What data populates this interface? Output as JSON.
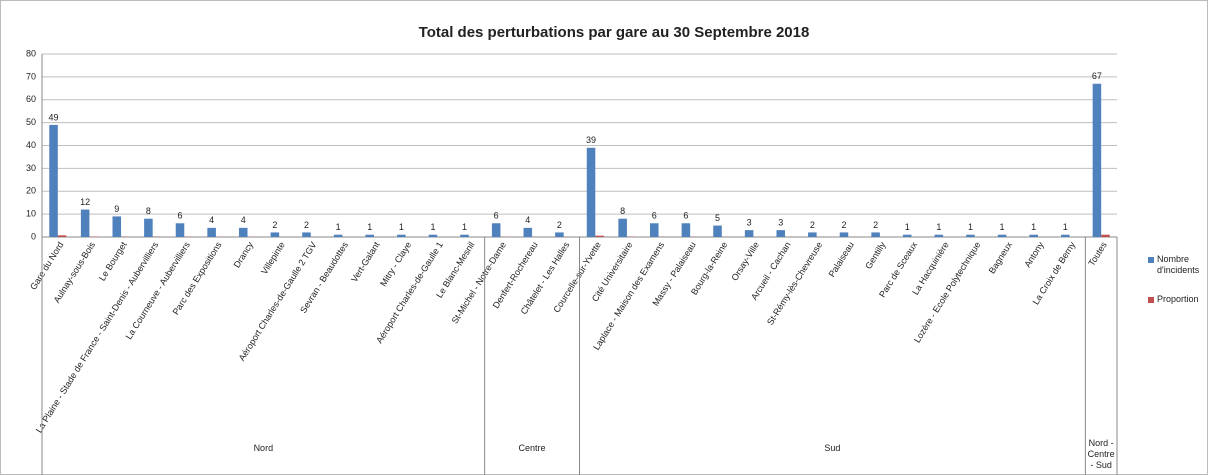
{
  "chart_data": {
    "type": "bar",
    "title": "Total des perturbations par gare au 30 Septembre 2018",
    "groups": [
      {
        "label": "Nord",
        "categories": [
          "Gare du Nord",
          "Aulnay-sous-Bois",
          "Le Bourget",
          "La Plaine - Stade de France - Saint-Denis - Aubervilliers",
          "La Courneuve - Aubervilliers",
          "Parc des Expositions",
          "Drancy",
          "Villepinte",
          "Aéroport Charles-de-Gaulle 2 TGV",
          "Sevran - Beaudottes",
          "Vert-Galant",
          "Mitry - Claye",
          "Aéroport Charles-de-Gaulle 1",
          "Le Blanc-Mesnil"
        ]
      },
      {
        "label": "Centre",
        "categories": [
          "St-Michel - Notre-Dame",
          "Denfert-Rochereau",
          "Châtelet - Les Halles"
        ]
      },
      {
        "label": "Sud",
        "categories": [
          "Courcelle-sur-Yvette",
          "Cité Universitaire",
          "Laplace - Maison des Examens",
          "Massy - Palaiseau",
          "Bourg-la-Reine",
          "Orsay-Ville",
          "Arcueil - Cachan",
          "St-Rémy-lès-Chevreuse",
          "Palaiseau",
          "Gentilly",
          "Parc de Sceaux",
          "La Hacquinière",
          "Lozère - Ecole Polytechnique",
          "Bagneux",
          "Antony",
          "La Croix de Berny"
        ]
      },
      {
        "label": "Nord - Centre - Sud",
        "categories": [
          "Toutes"
        ]
      }
    ],
    "series": [
      {
        "name": "Nombre d'incidents",
        "color": "#4f81bd",
        "values": [
          49,
          12,
          9,
          8,
          6,
          4,
          4,
          2,
          2,
          1,
          1,
          1,
          1,
          1,
          6,
          4,
          2,
          39,
          8,
          6,
          6,
          5,
          3,
          3,
          2,
          2,
          2,
          1,
          1,
          1,
          1,
          1,
          1,
          67
        ]
      },
      {
        "name": "Proportion",
        "color": "#c0504d",
        "values": [
          0.73,
          0.18,
          0.13,
          0.12,
          0.09,
          0.06,
          0.06,
          0.03,
          0.03,
          0.01,
          0.01,
          0.01,
          0.01,
          0.01,
          0.09,
          0.06,
          0.03,
          0.58,
          0.12,
          0.09,
          0.09,
          0.07,
          0.04,
          0.04,
          0.03,
          0.03,
          0.03,
          0.01,
          0.01,
          0.01,
          0.01,
          0.01,
          0.01,
          1
        ]
      }
    ],
    "ylim": [
      0,
      80
    ],
    "yticks": [
      0,
      10,
      20,
      30,
      40,
      50,
      60,
      70,
      80
    ],
    "grid": true,
    "legend": "right",
    "data_labels_series": 0
  }
}
